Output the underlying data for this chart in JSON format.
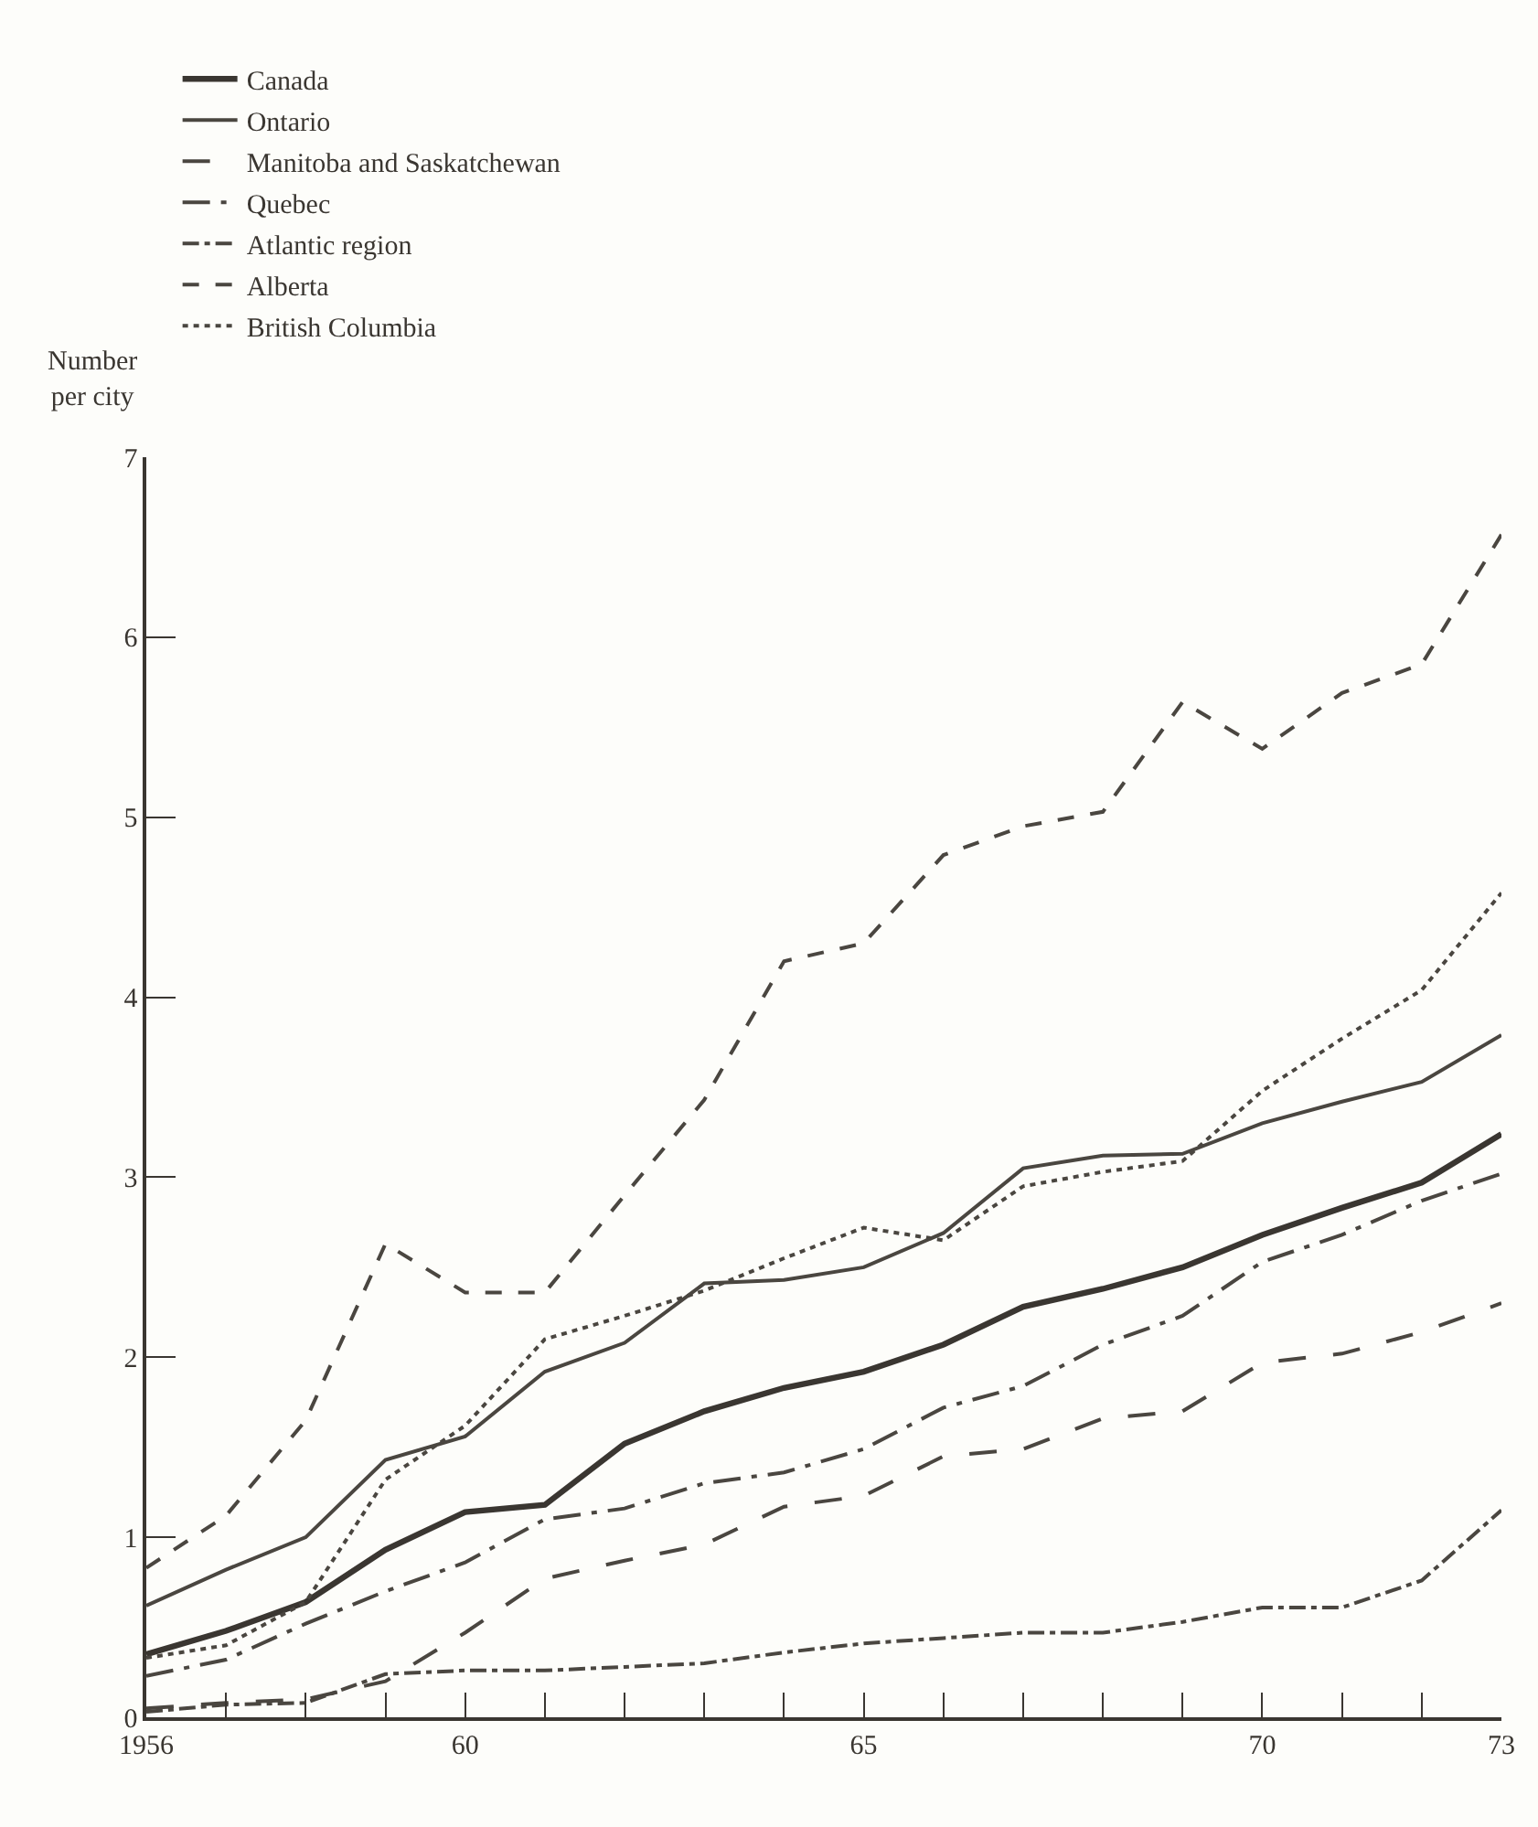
{
  "chart_data": {
    "type": "line",
    "ylabel": "Number per city",
    "x": [
      1956,
      1957,
      1958,
      1959,
      1960,
      1961,
      1962,
      1963,
      1964,
      1965,
      1966,
      1967,
      1968,
      1969,
      1970,
      1971,
      1972,
      1973
    ],
    "xlim": [
      1956,
      1973
    ],
    "xticks": [
      1956,
      {
        "value": 1957,
        "label": null
      },
      {
        "value": 1958,
        "label": null
      },
      {
        "value": 1959,
        "label": null
      },
      {
        "value": 1960,
        "label": "60"
      },
      {
        "value": 1961,
        "label": null
      },
      {
        "value": 1962,
        "label": null
      },
      {
        "value": 1963,
        "label": null
      },
      {
        "value": 1964,
        "label": null
      },
      {
        "value": 1965,
        "label": "65"
      },
      {
        "value": 1966,
        "label": null
      },
      {
        "value": 1967,
        "label": null
      },
      {
        "value": 1968,
        "label": null
      },
      {
        "value": 1969,
        "label": null
      },
      {
        "value": 1970,
        "label": "70"
      },
      {
        "value": 1971,
        "label": null
      },
      {
        "value": 1972,
        "label": null
      },
      {
        "value": 1973,
        "label": "73"
      }
    ],
    "ylim": [
      0,
      7
    ],
    "yticks": [
      0,
      1,
      2,
      3,
      4,
      5,
      6,
      7
    ],
    "grid": false,
    "legend": "top",
    "marker": "none",
    "series": [
      {
        "name": "Canada",
        "color": "#3a3631",
        "line_style": "solid",
        "values": [
          0.35,
          0.48,
          0.64,
          0.93,
          1.14,
          1.18,
          1.52,
          1.7,
          1.83,
          1.92,
          2.07,
          2.28,
          2.38,
          2.5,
          2.68,
          2.83,
          2.97,
          3.24
        ]
      },
      {
        "name": "Ontario",
        "color": "#4a4640",
        "line_style": "solid",
        "values": [
          0.62,
          0.82,
          1.0,
          1.43,
          1.56,
          1.92,
          2.08,
          2.41,
          2.43,
          2.5,
          2.69,
          3.05,
          3.12,
          3.13,
          3.3,
          3.42,
          3.53,
          3.79
        ]
      },
      {
        "name": "Manitoba and Saskatchewan",
        "color": "#4a4640",
        "line_style": "longdash",
        "values": [
          0.05,
          0.08,
          0.1,
          0.2,
          0.47,
          0.77,
          0.87,
          0.96,
          1.17,
          1.23,
          1.45,
          1.49,
          1.66,
          1.7,
          1.97,
          2.02,
          2.14,
          2.3
        ]
      },
      {
        "name": "Quebec",
        "color": "#4a4640",
        "line_style": "longdashdot",
        "values": [
          0.23,
          0.32,
          0.52,
          0.7,
          0.86,
          1.1,
          1.16,
          1.3,
          1.36,
          1.49,
          1.72,
          1.84,
          2.07,
          2.23,
          2.53,
          2.68,
          2.87,
          3.02
        ]
      },
      {
        "name": "Atlantic region",
        "color": "#4a4640",
        "line_style": "dashdot",
        "values": [
          0.03,
          0.07,
          0.08,
          0.24,
          0.26,
          0.26,
          0.28,
          0.3,
          0.36,
          0.41,
          0.44,
          0.47,
          0.47,
          0.53,
          0.61,
          0.61,
          0.76,
          1.15
        ]
      },
      {
        "name": "Alberta",
        "color": "#4a4640",
        "line_style": "dashed",
        "values": [
          0.83,
          1.12,
          1.65,
          2.63,
          2.36,
          2.36,
          2.9,
          3.43,
          4.2,
          4.3,
          4.79,
          4.95,
          5.03,
          5.64,
          5.38,
          5.69,
          5.85,
          6.57
        ]
      },
      {
        "name": "British Columbia",
        "color": "#4a4640",
        "line_style": "dotted",
        "values": [
          0.33,
          0.4,
          0.64,
          1.32,
          1.62,
          2.1,
          2.23,
          2.37,
          2.55,
          2.72,
          2.65,
          2.95,
          3.03,
          3.09,
          3.48,
          3.77,
          4.04,
          4.58
        ]
      }
    ]
  }
}
